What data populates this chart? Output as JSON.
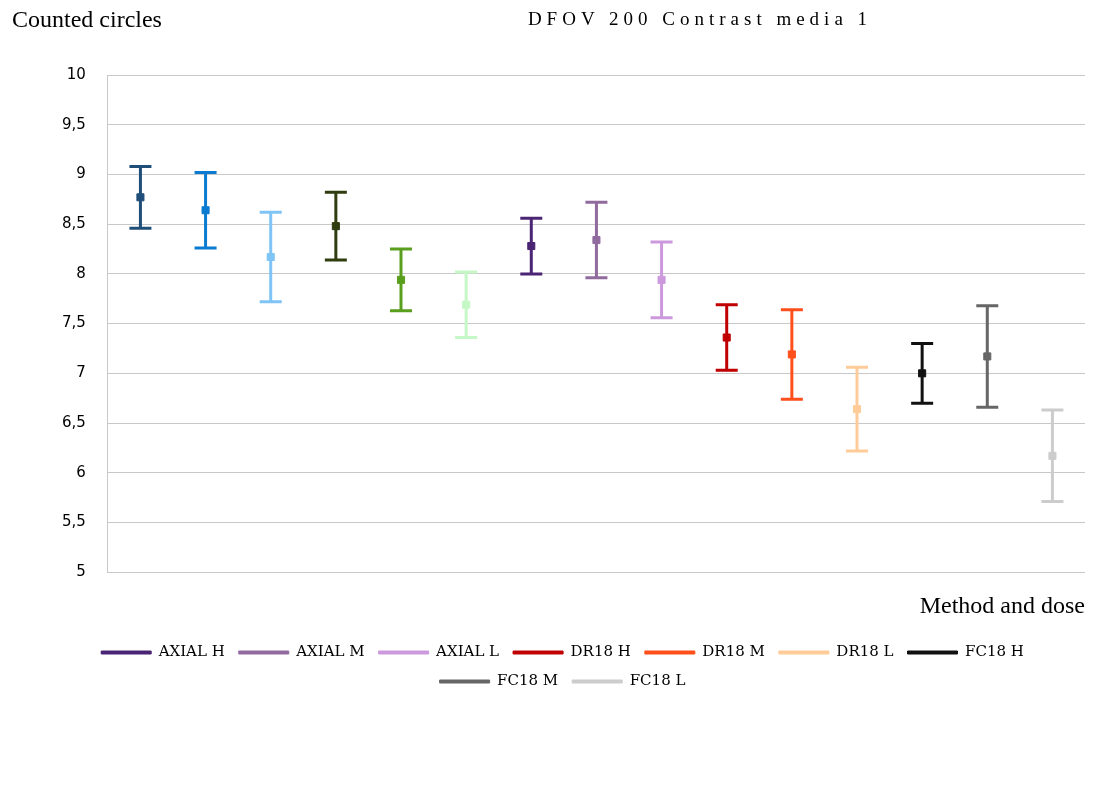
{
  "chart_data": {
    "type": "scatter",
    "title": "DFOV 200 Contrast media 1",
    "ylabel": "Counted circles",
    "xlabel": "Method and dose",
    "categories": [
      null,
      null,
      null,
      null,
      null,
      null,
      null,
      null,
      null,
      null,
      null,
      null,
      null,
      null,
      null
    ],
    "ylim": [
      5,
      10
    ],
    "yticks": [
      5,
      {
        "value": 5.5,
        "label": "5,5"
      },
      6,
      {
        "value": 6.5,
        "label": "6,5"
      },
      7,
      {
        "value": 7.5,
        "label": "7,5"
      },
      8,
      {
        "value": 8.5,
        "label": "8,5"
      },
      9,
      {
        "value": 9.5,
        "label": "9,5"
      },
      10
    ],
    "grid": "y",
    "legend": "bottom",
    "tick_labels": "y",
    "marker": "square",
    "series": [
      {
        "color": "#1f4e79",
        "values": [
          8.77,
          null,
          null,
          null,
          null,
          null,
          null,
          null,
          null,
          null,
          null,
          null,
          null,
          null,
          null
        ],
        "errors": [
          0.31,
          null,
          null,
          null,
          null,
          null,
          null,
          null,
          null,
          null,
          null,
          null,
          null,
          null,
          null
        ]
      },
      {
        "color": "#0a7bd0",
        "values": [
          null,
          8.64,
          null,
          null,
          null,
          null,
          null,
          null,
          null,
          null,
          null,
          null,
          null,
          null,
          null
        ],
        "errors": [
          null,
          0.38,
          null,
          null,
          null,
          null,
          null,
          null,
          null,
          null,
          null,
          null,
          null,
          null,
          null
        ]
      },
      {
        "color": "#7fc4f5",
        "values": [
          null,
          null,
          8.17,
          null,
          null,
          null,
          null,
          null,
          null,
          null,
          null,
          null,
          null,
          null,
          null
        ],
        "errors": [
          null,
          null,
          0.45,
          null,
          null,
          null,
          null,
          null,
          null,
          null,
          null,
          null,
          null,
          null,
          null
        ]
      },
      {
        "color": "#2f3d0f",
        "values": [
          null,
          null,
          null,
          8.48,
          null,
          null,
          null,
          null,
          null,
          null,
          null,
          null,
          null,
          null,
          null
        ],
        "errors": [
          null,
          null,
          null,
          0.34,
          null,
          null,
          null,
          null,
          null,
          null,
          null,
          null,
          null,
          null,
          null
        ]
      },
      {
        "color": "#5a9e1e",
        "values": [
          null,
          null,
          null,
          null,
          7.94,
          null,
          null,
          null,
          null,
          null,
          null,
          null,
          null,
          null,
          null
        ],
        "errors": [
          null,
          null,
          null,
          null,
          0.31,
          null,
          null,
          null,
          null,
          null,
          null,
          null,
          null,
          null,
          null
        ]
      },
      {
        "color": "#c6f7c6",
        "values": [
          null,
          null,
          null,
          null,
          null,
          7.69,
          null,
          null,
          null,
          null,
          null,
          null,
          null,
          null,
          null
        ],
        "errors": [
          null,
          null,
          null,
          null,
          null,
          0.33,
          null,
          null,
          null,
          null,
          null,
          null,
          null,
          null,
          null
        ]
      },
      {
        "name": "AXIAL H",
        "color": "#4b2574",
        "values": [
          null,
          null,
          null,
          null,
          null,
          null,
          8.28,
          null,
          null,
          null,
          null,
          null,
          null,
          null,
          null
        ],
        "errors": [
          null,
          null,
          null,
          null,
          null,
          null,
          0.28,
          null,
          null,
          null,
          null,
          null,
          null,
          null,
          null
        ]
      },
      {
        "name": "AXIAL M",
        "color": "#926b9e",
        "values": [
          null,
          null,
          null,
          null,
          null,
          null,
          null,
          8.34,
          null,
          null,
          null,
          null,
          null,
          null,
          null
        ],
        "errors": [
          null,
          null,
          null,
          null,
          null,
          null,
          null,
          0.38,
          null,
          null,
          null,
          null,
          null,
          null,
          null
        ]
      },
      {
        "name": "AXIAL L",
        "color": "#cc99dd",
        "values": [
          null,
          null,
          null,
          null,
          null,
          null,
          null,
          null,
          7.94,
          null,
          null,
          null,
          null,
          null,
          null
        ],
        "errors": [
          null,
          null,
          null,
          null,
          null,
          null,
          null,
          null,
          0.38,
          null,
          null,
          null,
          null,
          null,
          null
        ]
      },
      {
        "name": "DR18 H",
        "color": "#c00000",
        "values": [
          null,
          null,
          null,
          null,
          null,
          null,
          null,
          null,
          null,
          7.36,
          null,
          null,
          null,
          null,
          null
        ],
        "errors": [
          null,
          null,
          null,
          null,
          null,
          null,
          null,
          null,
          null,
          0.33,
          null,
          null,
          null,
          null,
          null
        ]
      },
      {
        "name": "DR18 M",
        "color": "#ff4f1a",
        "values": [
          null,
          null,
          null,
          null,
          null,
          null,
          null,
          null,
          null,
          null,
          7.19,
          null,
          null,
          null,
          null
        ],
        "errors": [
          null,
          null,
          null,
          null,
          null,
          null,
          null,
          null,
          null,
          null,
          0.45,
          null,
          null,
          null,
          null
        ]
      },
      {
        "name": "DR18 L",
        "color": "#ffcc99",
        "values": [
          null,
          null,
          null,
          null,
          null,
          null,
          null,
          null,
          null,
          null,
          null,
          6.64,
          null,
          null,
          null
        ],
        "errors": [
          null,
          null,
          null,
          null,
          null,
          null,
          null,
          null,
          null,
          null,
          null,
          0.42,
          null,
          null,
          null
        ]
      },
      {
        "name": "FC18 H",
        "color": "#111111",
        "values": [
          null,
          null,
          null,
          null,
          null,
          null,
          null,
          null,
          null,
          null,
          null,
          null,
          7.0,
          null,
          null
        ],
        "errors": [
          null,
          null,
          null,
          null,
          null,
          null,
          null,
          null,
          null,
          null,
          null,
          null,
          0.3,
          null,
          null
        ]
      },
      {
        "name": "FC18 M",
        "color": "#666666",
        "values": [
          null,
          null,
          null,
          null,
          null,
          null,
          null,
          null,
          null,
          null,
          null,
          null,
          null,
          7.17,
          null
        ],
        "errors": [
          null,
          null,
          null,
          null,
          null,
          null,
          null,
          null,
          null,
          null,
          null,
          null,
          null,
          0.51,
          null
        ]
      },
      {
        "name": "FC18 L",
        "color": "#cccccc",
        "values": [
          null,
          null,
          null,
          null,
          null,
          null,
          null,
          null,
          null,
          null,
          null,
          null,
          null,
          null,
          6.17
        ],
        "errors": [
          null,
          null,
          null,
          null,
          null,
          null,
          null,
          null,
          null,
          null,
          null,
          null,
          null,
          null,
          0.46
        ]
      }
    ]
  }
}
